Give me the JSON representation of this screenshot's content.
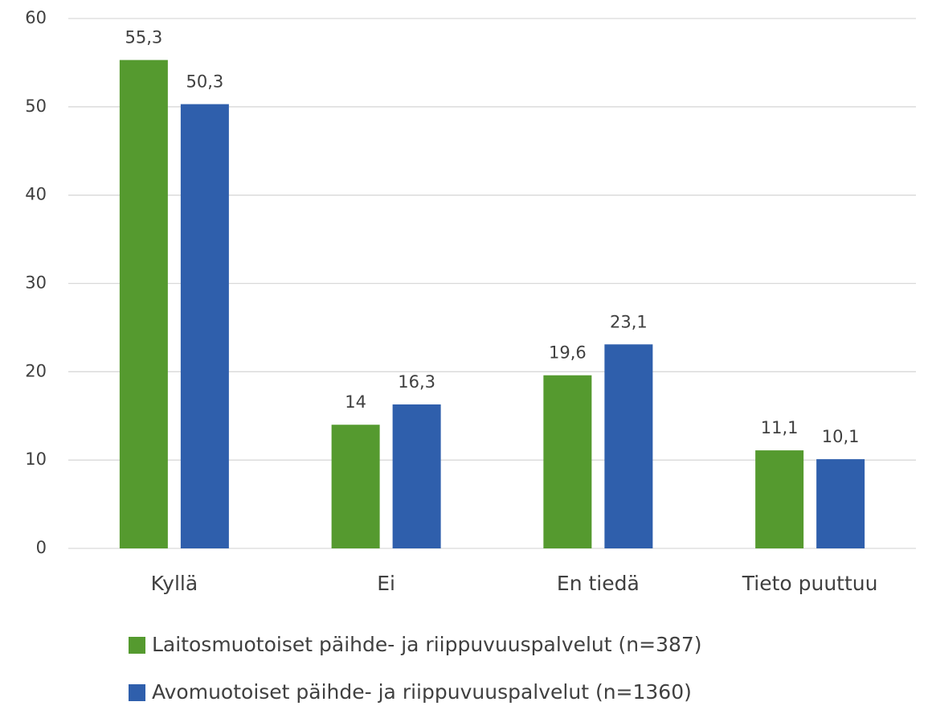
{
  "chart_data": {
    "type": "bar",
    "categories": [
      "Kyllä",
      "Ei",
      "En tiedä",
      "Tieto puuttuu"
    ],
    "series": [
      {
        "name": "Laitosmuotoiset päihde- ja riippuvuuspalvelut (n=387)",
        "color": "#559a2f",
        "values": [
          55.3,
          14,
          19.6,
          11.1
        ],
        "value_labels": [
          "55,3",
          "14",
          "19,6",
          "11,1"
        ]
      },
      {
        "name": "Avomuotoiset päihde- ja riippuvuuspalvelut (n=1360)",
        "color": "#2f5fac",
        "values": [
          50.3,
          16.3,
          23.1,
          10.1
        ],
        "value_labels": [
          "50,3",
          "16,3",
          "23,1",
          "10,1"
        ]
      }
    ],
    "ylim": [
      0,
      60
    ],
    "yticks": [
      0,
      10,
      20,
      30,
      40,
      50,
      60
    ],
    "grid": true,
    "legend": "bottom"
  }
}
